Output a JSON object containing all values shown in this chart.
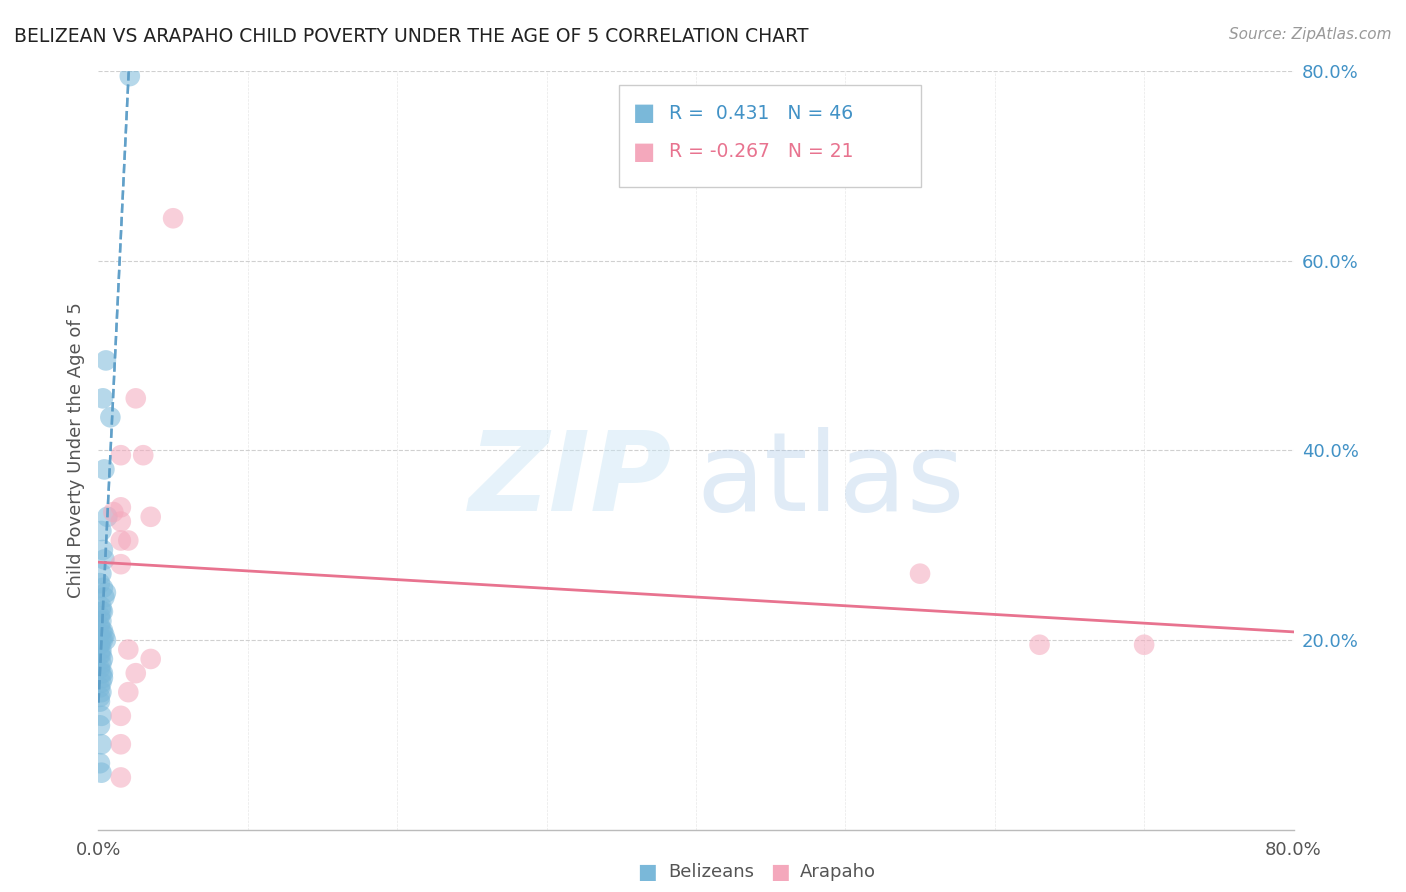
{
  "title": "BELIZEAN VS ARAPAHO CHILD POVERTY UNDER THE AGE OF 5 CORRELATION CHART",
  "source": "Source: ZipAtlas.com",
  "ylabel": "Child Poverty Under the Age of 5",
  "xlim": [
    0.0,
    0.8
  ],
  "ylim": [
    0.0,
    0.8
  ],
  "yticks_right": [
    0.2,
    0.4,
    0.6,
    0.8
  ],
  "ytick_labels_right": [
    "20.0%",
    "40.0%",
    "60.0%",
    "80.0%"
  ],
  "xtick_positions": [
    0.0,
    0.8
  ],
  "xtick_labels": [
    "0.0%",
    "80.0%"
  ],
  "legend_blue_r": "0.431",
  "legend_blue_n": "46",
  "legend_pink_r": "-0.267",
  "legend_pink_n": "21",
  "blue_color": "#7ab8d9",
  "pink_color": "#f4a8bc",
  "blue_line_color": "#5b9dc7",
  "pink_line_color": "#e8738f",
  "legend_label_blue": "Belizeans",
  "legend_label_pink": "Arapaho",
  "blue_points_x": [
    0.021,
    0.005,
    0.003,
    0.008,
    0.004,
    0.006,
    0.002,
    0.003,
    0.004,
    0.002,
    0.001,
    0.003,
    0.005,
    0.004,
    0.002,
    0.002,
    0.003,
    0.001,
    0.002,
    0.001,
    0.003,
    0.002,
    0.004,
    0.003,
    0.002,
    0.005,
    0.001,
    0.002,
    0.002,
    0.001,
    0.003,
    0.002,
    0.001,
    0.002,
    0.003,
    0.003,
    0.002,
    0.001,
    0.002,
    0.001,
    0.001,
    0.002,
    0.001,
    0.002,
    0.001,
    0.002
  ],
  "blue_points_y": [
    0.795,
    0.495,
    0.455,
    0.435,
    0.38,
    0.33,
    0.315,
    0.295,
    0.285,
    0.27,
    0.26,
    0.255,
    0.25,
    0.245,
    0.235,
    0.23,
    0.23,
    0.225,
    0.22,
    0.215,
    0.21,
    0.21,
    0.205,
    0.2,
    0.2,
    0.2,
    0.195,
    0.19,
    0.185,
    0.185,
    0.18,
    0.175,
    0.17,
    0.165,
    0.165,
    0.16,
    0.155,
    0.15,
    0.145,
    0.14,
    0.135,
    0.12,
    0.11,
    0.09,
    0.07,
    0.06
  ],
  "pink_points_x": [
    0.05,
    0.025,
    0.03,
    0.015,
    0.015,
    0.01,
    0.015,
    0.015,
    0.02,
    0.015,
    0.035,
    0.55,
    0.63,
    0.7,
    0.02,
    0.035,
    0.025,
    0.02,
    0.015,
    0.015,
    0.015
  ],
  "pink_points_y": [
    0.645,
    0.455,
    0.395,
    0.395,
    0.34,
    0.335,
    0.325,
    0.305,
    0.305,
    0.28,
    0.33,
    0.27,
    0.195,
    0.195,
    0.19,
    0.18,
    0.165,
    0.145,
    0.12,
    0.09,
    0.055
  ],
  "background_color": "#ffffff",
  "grid_color": "#d0d0d0",
  "title_color": "#222222",
  "axis_color": "#4292c6",
  "label_color": "#555555"
}
